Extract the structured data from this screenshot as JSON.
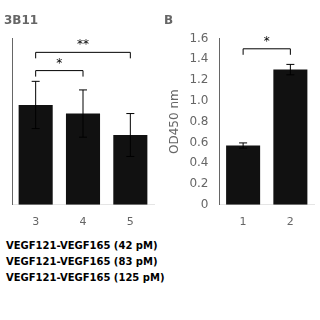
{
  "chart_data": [
    {
      "type": "bar",
      "title": "3B11",
      "categories": [
        "3",
        "4",
        "5"
      ],
      "values": [
        0.93,
        0.85,
        0.65
      ],
      "errors": [
        0.22,
        0.22,
        0.2
      ],
      "color": "#111111",
      "ylim": [
        0,
        1.55
      ],
      "grid": false,
      "tick_labels": "x",
      "significance": [
        {
          "x1": "3",
          "x2": "4",
          "y": 1.25,
          "label": "*"
        },
        {
          "x1": "3",
          "x2": "5",
          "y": 1.42,
          "label": "**"
        }
      ]
    },
    {
      "type": "bar",
      "title": "B",
      "ylabel": "OD450 nm",
      "categories": [
        "1",
        "2"
      ],
      "values": [
        0.57,
        1.3
      ],
      "errors": [
        0.025,
        0.05
      ],
      "color": "#111111",
      "ylim": [
        0,
        1.6
      ],
      "yticks": [
        0,
        0.2,
        0.4,
        0.6,
        0.8,
        {
          "value": 1,
          "label": "1.0"
        },
        1.2,
        1.4,
        1.6
      ],
      "grid": false,
      "significance": [
        {
          "x1": "1",
          "x2": "2",
          "y": 1.5,
          "label": "*"
        }
      ]
    }
  ],
  "annotations": [
    "VEGF121-VEGF165 (42 pM)",
    "VEGF121-VEGF165 (83 pM)",
    "VEGF121-VEGF165 (125 pM)"
  ]
}
